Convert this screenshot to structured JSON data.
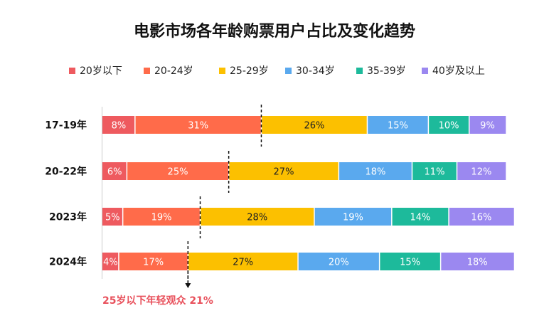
{
  "chart_data": {
    "type": "bar",
    "orientation": "horizontal",
    "stacked": true,
    "title": "电影市场各年龄购票用户占比及变化趋势",
    "categories": [
      "17-19年",
      "20-22年",
      "2023年",
      "2024年"
    ],
    "series": [
      {
        "name": "20岁以下",
        "color": "#ee5a5f",
        "values": [
          8,
          6,
          5,
          4
        ]
      },
      {
        "name": "20-24岁",
        "color": "#ff6b4a",
        "values": [
          31,
          25,
          19,
          17
        ]
      },
      {
        "name": "25-29岁",
        "color": "#fcc000",
        "values": [
          26,
          27,
          28,
          27
        ]
      },
      {
        "name": "30-34岁",
        "color": "#5aa9ee",
        "values": [
          15,
          18,
          19,
          20
        ]
      },
      {
        "name": "35-39岁",
        "color": "#1dba9b",
        "values": [
          10,
          11,
          14,
          15
        ]
      },
      {
        "name": "40岁及以上",
        "color": "#9b88f0",
        "values": [
          9,
          12,
          16,
          18
        ]
      }
    ],
    "data_labels": [
      [
        "8%",
        "31%",
        "26%",
        "15%",
        "10%",
        "9%"
      ],
      [
        "6%",
        "25%",
        "27%",
        "18%",
        "11%",
        "12%"
      ],
      [
        "5%",
        "19%",
        "28%",
        "19%",
        "14%",
        "16%"
      ],
      [
        "4%",
        "17%",
        "27%",
        "20%",
        "15%",
        "18%"
      ]
    ],
    "xlim": [
      0,
      100
    ],
    "xlabel": "",
    "ylabel": "",
    "legend_position": "top",
    "grid": false,
    "annotation": "25岁以下年轻观众 21%"
  }
}
